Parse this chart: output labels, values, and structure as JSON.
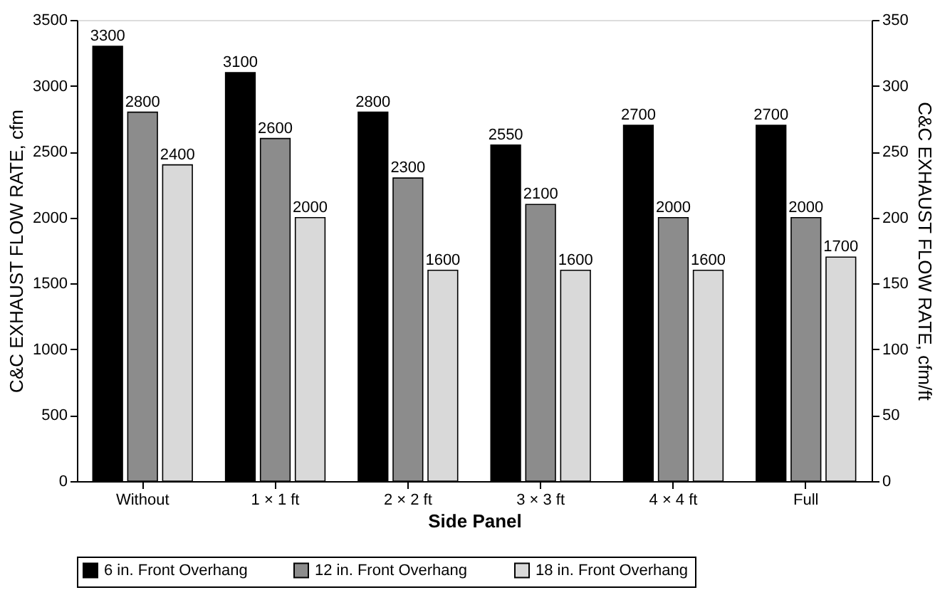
{
  "chart_data": {
    "type": "bar",
    "xlabel": "Side Panel",
    "ylabel": "C&C EXHAUST FLOW RATE, cfm",
    "y2label": "C&C EXHAUST FLOW RATE, cfm/ft",
    "categories": [
      "Without",
      "1 × 1 ft",
      "2 × 2 ft",
      "3 × 3 ft",
      "4 × 4 ft",
      "Full"
    ],
    "series": [
      {
        "name": "6 in. Front Overhang",
        "color": "#000000",
        "values": [
          3300,
          3100,
          2800,
          2550,
          2700,
          2700
        ]
      },
      {
        "name": "12 in. Front Overhang",
        "color": "#8c8c8c",
        "values": [
          2800,
          2600,
          2300,
          2100,
          2000,
          2000
        ]
      },
      {
        "name": "18 in. Front Overhang",
        "color": "#d9d9d9",
        "values": [
          2400,
          2000,
          1600,
          1600,
          1600,
          1700
        ]
      }
    ],
    "ylim": [
      0,
      3500
    ],
    "yticks": [
      0,
      500,
      1000,
      1500,
      2000,
      2500,
      3000,
      3500
    ],
    "y2lim": [
      0,
      350
    ],
    "y2ticks": [
      0,
      50,
      100,
      150,
      200,
      250,
      300,
      350
    ],
    "data_labels": true,
    "grid": false,
    "legend": "bottom"
  }
}
